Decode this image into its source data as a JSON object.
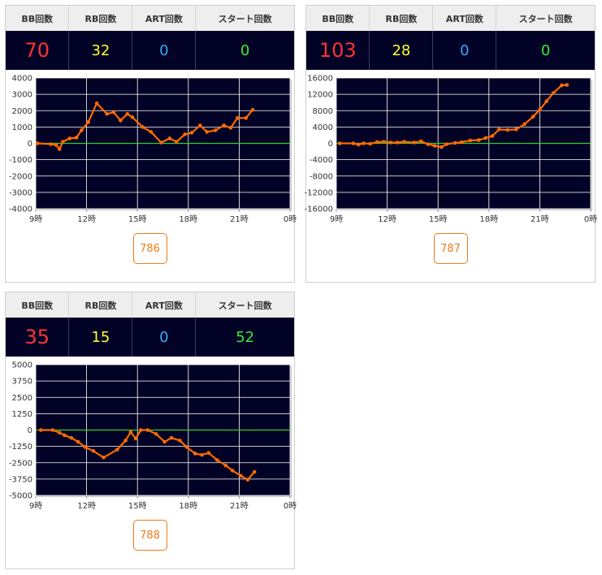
{
  "colors": {
    "bb": "#ff3333",
    "rb": "#ffff33",
    "art": "#33a9ff",
    "start": "#33ee33",
    "line": "#ff6a00",
    "zero_line": "#33cc33",
    "plot_bg": "#020226",
    "accent": "#f07a18"
  },
  "machines": [
    {
      "stats": {
        "bb_label": "BB回数",
        "rb_label": "RB回数",
        "art_label": "ART回数",
        "start_label": "スタート回数",
        "bb": "70",
        "rb": "32",
        "art": "0",
        "start": "0"
      },
      "button": "786",
      "chart_data": {
        "type": "line",
        "xticks": [
          "9時",
          "12時",
          "15時",
          "18時",
          "21時",
          "0時"
        ],
        "yticks": [
          "4000",
          "3000",
          "2000",
          "1000",
          "0",
          "-1000",
          "-2000",
          "-3000",
          "-4000"
        ],
        "xlim": [
          9,
          24
        ],
        "ylim": [
          -4000,
          4000
        ],
        "grid": true,
        "series": [
          {
            "values": [
              [
                9.1,
                0
              ],
              [
                9.9,
                -50
              ],
              [
                10.2,
                -100
              ],
              [
                10.4,
                -350
              ],
              [
                10.6,
                100
              ],
              [
                11.0,
                300
              ],
              [
                11.4,
                350
              ],
              [
                11.7,
                800
              ],
              [
                12.1,
                1300
              ],
              [
                12.6,
                2450
              ],
              [
                13.2,
                1800
              ],
              [
                13.6,
                1900
              ],
              [
                14.0,
                1400
              ],
              [
                14.4,
                1800
              ],
              [
                14.7,
                1600
              ],
              [
                15.3,
                1000
              ],
              [
                15.8,
                700
              ],
              [
                16.4,
                50
              ],
              [
                16.9,
                300
              ],
              [
                17.3,
                100
              ],
              [
                17.8,
                550
              ],
              [
                18.2,
                650
              ],
              [
                18.7,
                1100
              ],
              [
                19.1,
                700
              ],
              [
                19.6,
                800
              ],
              [
                20.1,
                1100
              ],
              [
                20.5,
                950
              ],
              [
                20.9,
                1550
              ],
              [
                21.4,
                1550
              ],
              [
                21.8,
                2050
              ]
            ]
          }
        ]
      }
    },
    {
      "stats": {
        "bb_label": "BB回数",
        "rb_label": "RB回数",
        "art_label": "ART回数",
        "start_label": "スタート回数",
        "bb": "103",
        "rb": "28",
        "art": "0",
        "start": "0"
      },
      "button": "787",
      "chart_data": {
        "type": "line",
        "xticks": [
          "9時",
          "12時",
          "15時",
          "18時",
          "21時",
          "0時"
        ],
        "yticks": [
          "16000",
          "12000",
          "8000",
          "4000",
          "0",
          "-4000",
          "-8000",
          "-12000",
          "-16000"
        ],
        "xlim": [
          9,
          24
        ],
        "ylim": [
          -16000,
          16000
        ],
        "grid": true,
        "series": [
          {
            "values": [
              [
                9.2,
                0
              ],
              [
                10.0,
                0
              ],
              [
                10.3,
                -300
              ],
              [
                10.6,
                0
              ],
              [
                11.0,
                -100
              ],
              [
                11.4,
                300
              ],
              [
                11.8,
                400
              ],
              [
                12.2,
                200
              ],
              [
                12.6,
                200
              ],
              [
                13.0,
                400
              ],
              [
                13.6,
                200
              ],
              [
                14.0,
                500
              ],
              [
                14.4,
                -200
              ],
              [
                14.8,
                -600
              ],
              [
                15.2,
                -900
              ],
              [
                15.5,
                -200
              ],
              [
                16.0,
                100
              ],
              [
                16.4,
                300
              ],
              [
                16.9,
                700
              ],
              [
                17.4,
                800
              ],
              [
                17.8,
                1300
              ],
              [
                18.2,
                1800
              ],
              [
                18.6,
                3400
              ],
              [
                19.1,
                3300
              ],
              [
                19.6,
                3400
              ],
              [
                20.1,
                4700
              ],
              [
                20.6,
                6500
              ],
              [
                21.0,
                8200
              ],
              [
                21.4,
                10300
              ],
              [
                21.8,
                12300
              ],
              [
                22.3,
                14200
              ],
              [
                22.6,
                14300
              ]
            ]
          }
        ]
      }
    },
    {
      "stats": {
        "bb_label": "BB回数",
        "rb_label": "RB回数",
        "art_label": "ART回数",
        "start_label": "スタート回数",
        "bb": "35",
        "rb": "15",
        "art": "0",
        "start": "52"
      },
      "button": "788",
      "chart_data": {
        "type": "line",
        "xticks": [
          "9時",
          "12時",
          "15時",
          "18時",
          "21時",
          "0時"
        ],
        "yticks": [
          "5000",
          "3750",
          "2500",
          "1250",
          "0",
          "-1250",
          "-2500",
          "-3750",
          "-5000"
        ],
        "xlim": [
          9,
          24
        ],
        "ylim": [
          -5000,
          5000
        ],
        "grid": true,
        "series": [
          {
            "values": [
              [
                9.3,
                0
              ],
              [
                10.0,
                0
              ],
              [
                10.4,
                -200
              ],
              [
                10.7,
                -400
              ],
              [
                11.1,
                -600
              ],
              [
                11.5,
                -900
              ],
              [
                11.9,
                -1300
              ],
              [
                12.4,
                -1600
              ],
              [
                13.0,
                -2100
              ],
              [
                13.8,
                -1500
              ],
              [
                14.3,
                -800
              ],
              [
                14.6,
                -150
              ],
              [
                14.9,
                -650
              ],
              [
                15.2,
                0
              ],
              [
                15.6,
                0
              ],
              [
                16.1,
                -300
              ],
              [
                16.6,
                -900
              ],
              [
                17.0,
                -600
              ],
              [
                17.5,
                -800
              ],
              [
                17.9,
                -1300
              ],
              [
                18.4,
                -1800
              ],
              [
                18.8,
                -1900
              ],
              [
                19.2,
                -1750
              ],
              [
                19.7,
                -2300
              ],
              [
                20.2,
                -2700
              ],
              [
                20.6,
                -3100
              ],
              [
                21.1,
                -3500
              ],
              [
                21.5,
                -3800
              ],
              [
                21.9,
                -3200
              ]
            ]
          }
        ]
      }
    }
  ]
}
